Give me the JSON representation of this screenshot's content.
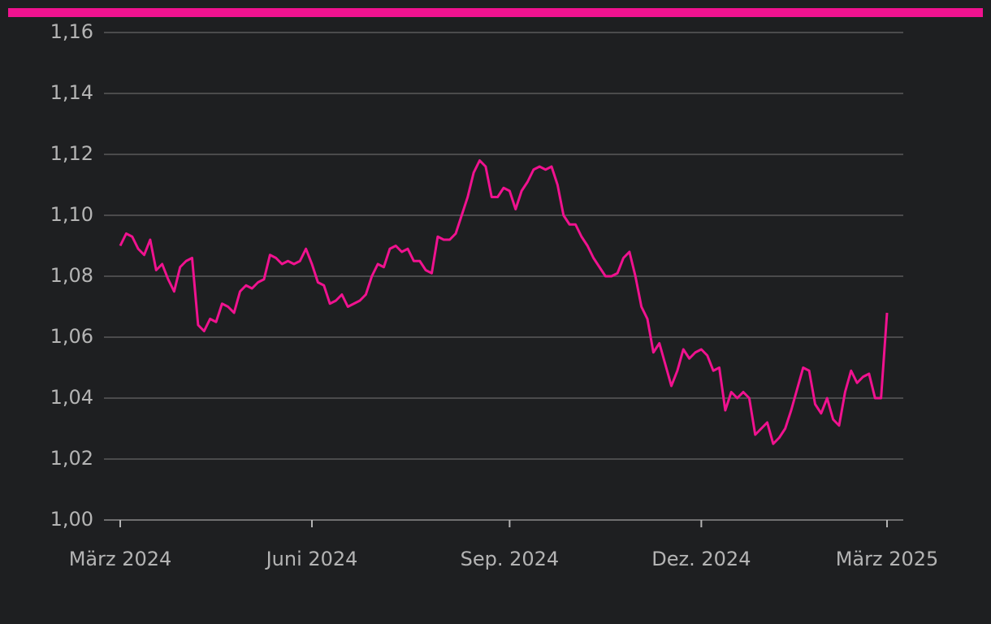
{
  "chart_data": {
    "type": "line",
    "categories": [
      "März 2024",
      null,
      null,
      null,
      null,
      null,
      null,
      null,
      null,
      null,
      null,
      null,
      null,
      null,
      null,
      null,
      null,
      null,
      null,
      null,
      null,
      null,
      null,
      null,
      null,
      null,
      null,
      null,
      null,
      null,
      null,
      null,
      "Juni 2024",
      null,
      null,
      null,
      null,
      null,
      null,
      null,
      null,
      null,
      null,
      null,
      null,
      null,
      null,
      null,
      null,
      null,
      null,
      null,
      null,
      null,
      null,
      null,
      null,
      null,
      null,
      null,
      null,
      null,
      null,
      null,
      null,
      "Sep. 2024",
      null,
      null,
      null,
      null,
      null,
      null,
      null,
      null,
      null,
      null,
      null,
      null,
      null,
      null,
      null,
      null,
      null,
      null,
      null,
      null,
      null,
      null,
      null,
      null,
      null,
      null,
      null,
      null,
      null,
      null,
      null,
      "Dez. 2024",
      null,
      null,
      null,
      null,
      null,
      null,
      null,
      null,
      null,
      null,
      null,
      null,
      null,
      null,
      null,
      null,
      null,
      null,
      null,
      null,
      null,
      null,
      null,
      null,
      null,
      null,
      null,
      null,
      null,
      null,
      "März 2025"
    ],
    "series": [
      {
        "color": "#f0128f",
        "values": [
          1.09,
          1.094,
          1.093,
          1.089,
          1.087,
          1.092,
          1.082,
          1.084,
          1.079,
          1.075,
          1.083,
          1.085,
          1.086,
          1.064,
          1.062,
          1.066,
          1.065,
          1.071,
          1.07,
          1.068,
          1.075,
          1.077,
          1.076,
          1.078,
          1.079,
          1.087,
          1.086,
          1.084,
          1.085,
          1.084,
          1.085,
          1.089,
          1.084,
          1.078,
          1.077,
          1.071,
          1.072,
          1.074,
          1.07,
          1.071,
          1.072,
          1.074,
          1.08,
          1.084,
          1.083,
          1.089,
          1.09,
          1.088,
          1.089,
          1.085,
          1.085,
          1.082,
          1.081,
          1.093,
          1.092,
          1.092,
          1.094,
          1.1,
          1.106,
          1.114,
          1.118,
          1.116,
          1.106,
          1.106,
          1.109,
          1.108,
          1.102,
          1.108,
          1.111,
          1.115,
          1.116,
          1.115,
          1.116,
          1.11,
          1.1,
          1.097,
          1.097,
          1.093,
          1.09,
          1.086,
          1.083,
          1.08,
          1.08,
          1.081,
          1.086,
          1.088,
          1.08,
          1.07,
          1.066,
          1.055,
          1.058,
          1.051,
          1.044,
          1.049,
          1.056,
          1.053,
          1.055,
          1.056,
          1.054,
          1.049,
          1.05,
          1.036,
          1.042,
          1.04,
          1.042,
          1.04,
          1.028,
          1.03,
          1.032,
          1.025,
          1.027,
          1.03,
          1.036,
          1.043,
          1.05,
          1.049,
          1.038,
          1.035,
          1.04,
          1.033,
          1.031,
          1.042,
          1.049,
          1.045,
          1.047,
          1.048,
          1.04,
          1.04,
          1.068
        ]
      }
    ],
    "ylim": [
      1.0,
      1.16
    ],
    "yticks": [
      {
        "value": 1.0,
        "label": "1,00"
      },
      {
        "value": 1.02,
        "label": "1,02"
      },
      {
        "value": 1.04,
        "label": "1,04"
      },
      {
        "value": 1.06,
        "label": "1,06"
      },
      {
        "value": 1.08,
        "label": "1,08"
      },
      {
        "value": 1.1,
        "label": "1,10"
      },
      {
        "value": 1.12,
        "label": "1,12"
      },
      {
        "value": 1.14,
        "label": "1,14"
      },
      {
        "value": 1.16,
        "label": "1,16"
      }
    ],
    "grid": true
  }
}
